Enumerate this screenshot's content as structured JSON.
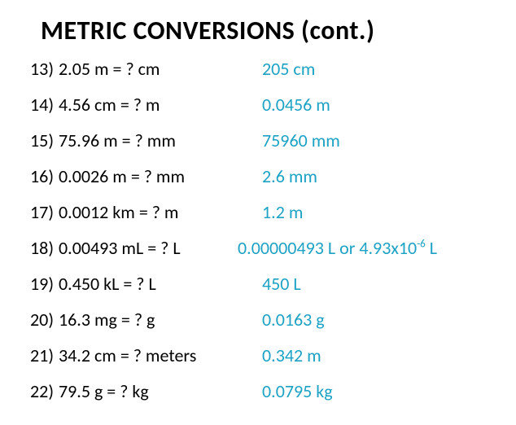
{
  "title": "METRIC CONVERSIONS (cont.)",
  "title_color": "#000000",
  "title_fontsize": 32,
  "question_color": "#000000",
  "answer_color": "#1ba2c4",
  "body_fontsize": 22,
  "background_color": "#ffffff",
  "rows": [
    {
      "n": "13)",
      "q": "2.05 m = ? cm",
      "a": "205 cm"
    },
    {
      "n": "14)",
      "q": "4.56 cm = ? m",
      "a": "0.0456 m"
    },
    {
      "n": "15)",
      "q": "75.96 m = ? mm",
      "a": "75960 mm"
    },
    {
      "n": "16)",
      "q": "0.0026 m = ? mm",
      "a": "2.6 mm"
    },
    {
      "n": "17)",
      "q": "0.0012 km =  ? m",
      "a": "1.2 m"
    },
    {
      "n": "18)",
      "q": "0.00493 mL = ? L",
      "a_prefix": "0.00000493 L or 4.93x10",
      "a_sup": "-6",
      "a_suffix": " L"
    },
    {
      "n": "19)",
      "q": "0.450 kL = ? L",
      "a": "450 L"
    },
    {
      "n": "20)",
      "q": "16.3 mg = ? g",
      "a": "0.0163 g"
    },
    {
      "n": "21)",
      "q": "34.2 cm = ? meters",
      "a": "0.342 m"
    },
    {
      "n": "22)",
      "q": "79.5 g = ? kg",
      "a": "0.0795 kg"
    }
  ]
}
